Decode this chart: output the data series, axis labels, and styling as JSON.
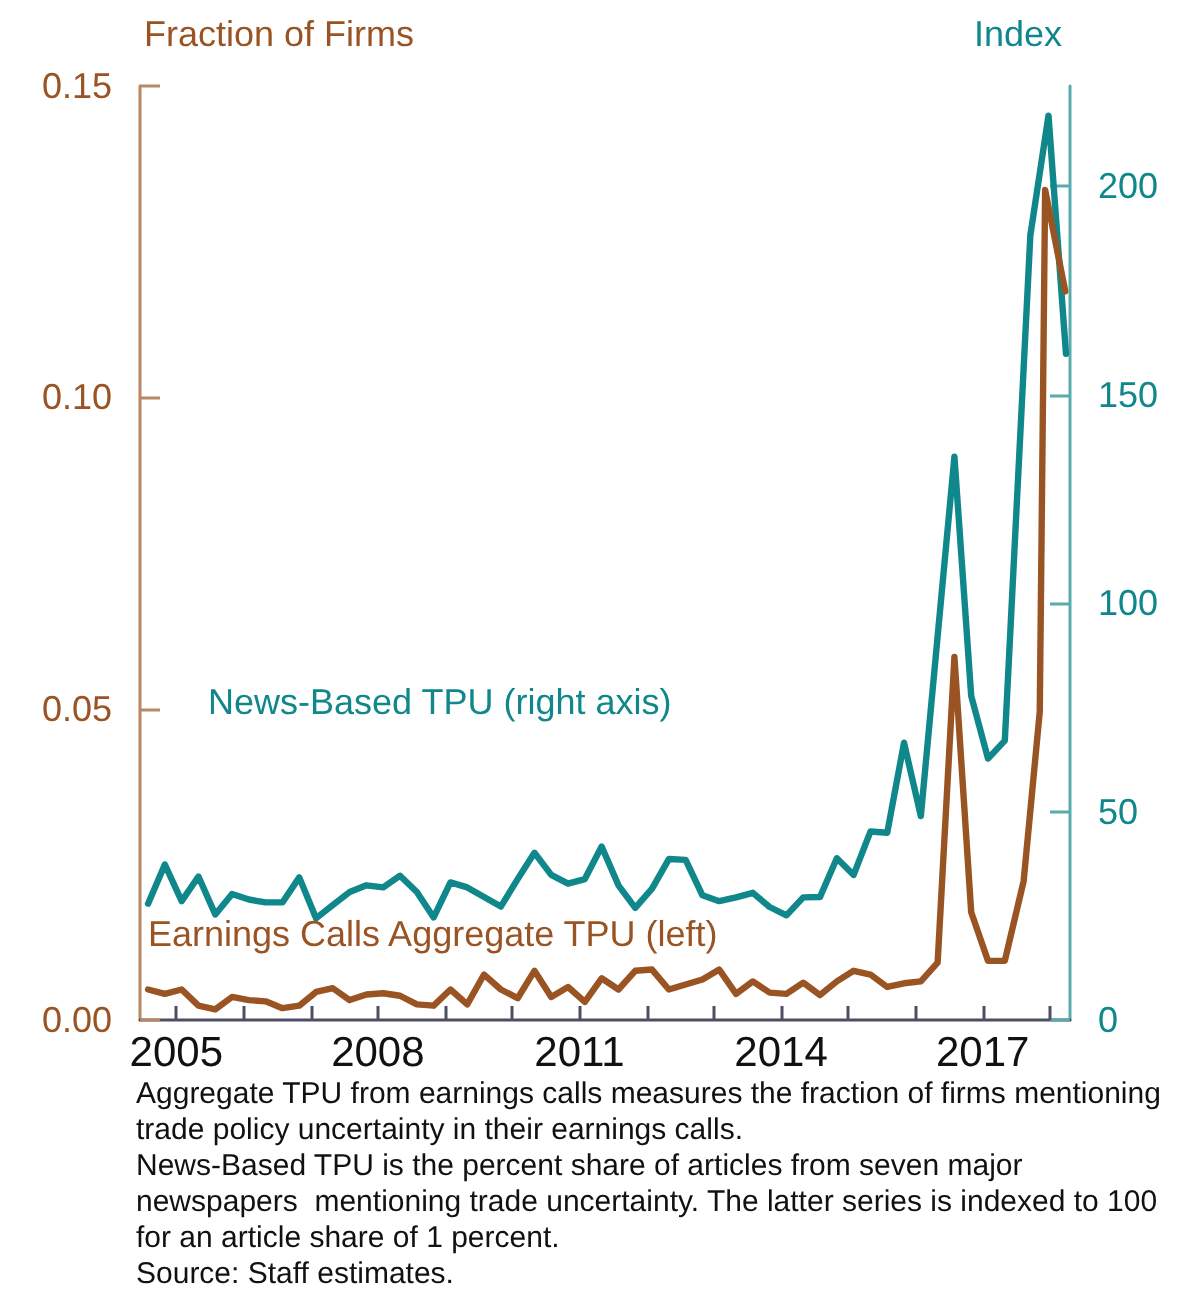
{
  "chart_data": {
    "type": "line",
    "ylabel": "Fraction of Firms",
    "y2label": "Index",
    "annotations": [
      "Aggregate TPU from earnings calls measures the fraction of firms mentioning trade policy uncertainty in their earnings calls.",
      "News-Based TPU is the percent share of articles from seven major newspapers  mentioning trade uncertainty. The latter series is indexed to 100 for an article share of 1 percent.",
      "Source: Staff estimates."
    ],
    "xlim": [
      2004.46,
      2018.3
    ],
    "xticks": [
      2005,
      {
        "value": 2006,
        "label": null
      },
      {
        "value": 2007,
        "label": null
      },
      2008,
      {
        "value": 2009,
        "label": null
      },
      {
        "value": 2010,
        "label": null
      },
      2011,
      {
        "value": 2012,
        "label": null
      },
      {
        "value": 2013,
        "label": null
      },
      2014,
      {
        "value": 2015,
        "label": null
      },
      {
        "value": 2016,
        "label": null
      },
      2017,
      {
        "value": 2018,
        "label": null
      }
    ],
    "ylim": [
      0,
      0.15
    ],
    "yticks": [
      {
        "value": 0,
        "label": "0.00"
      },
      0.05,
      {
        "value": 0.1,
        "label": "0.10"
      },
      0.15
    ],
    "y2lim": [
      0,
      224
    ],
    "y2ticks": [
      0,
      50,
      100,
      150,
      200
    ],
    "grid": false,
    "legend": false,
    "marker": "none",
    "line_style": "solid",
    "series": [
      {
        "name": "News-Based TPU (right axis)",
        "color": "#10878a",
        "axis": "y2",
        "x": [
          2004.58,
          2004.83,
          2005.08,
          2005.33,
          2005.58,
          2005.83,
          2006.08,
          2006.33,
          2006.58,
          2006.83,
          2007.08,
          2007.33,
          2007.58,
          2007.83,
          2008.08,
          2008.33,
          2008.58,
          2008.83,
          2009.08,
          2009.33,
          2009.58,
          2009.83,
          2010.08,
          2010.33,
          2010.58,
          2010.83,
          2011.08,
          2011.33,
          2011.58,
          2011.83,
          2012.08,
          2012.33,
          2012.58,
          2012.83,
          2013.08,
          2013.33,
          2013.58,
          2013.83,
          2014.08,
          2014.33,
          2014.58,
          2014.83,
          2015.08,
          2015.33,
          2015.58,
          2015.83,
          2016.08,
          2016.58,
          2016.83,
          2017.08,
          2017.33,
          2017.71,
          2017.98,
          2018.24
        ],
        "values": [
          27.9,
          37.3,
          28.5,
          34.4,
          25.3,
          30.2,
          28.9,
          28.2,
          28.2,
          34.2,
          24.4,
          27.6,
          30.7,
          32.3,
          31.8,
          34.6,
          30.7,
          24.6,
          33.0,
          31.8,
          29.5,
          27.2,
          33.8,
          40.1,
          34.8,
          32.7,
          33.8,
          41.6,
          32.3,
          26.9,
          31.5,
          38.6,
          38.4,
          29.9,
          28.5,
          29.4,
          30.5,
          27.1,
          25.1,
          29.4,
          29.5,
          38.8,
          34.8,
          45.2,
          44.9,
          66.5,
          48.9,
          135.1,
          77.7,
          62.7,
          67.0,
          188.2,
          216.9,
          159.8
        ]
      },
      {
        "name": "Earnings Calls Aggregate TPU (left)",
        "color": "#9a5424",
        "x": [
          2004.58,
          2004.83,
          2005.08,
          2005.33,
          2005.58,
          2005.83,
          2006.08,
          2006.33,
          2006.58,
          2006.83,
          2007.08,
          2007.33,
          2007.58,
          2007.83,
          2008.08,
          2008.33,
          2008.58,
          2008.83,
          2009.08,
          2009.33,
          2009.58,
          2009.83,
          2010.08,
          2010.33,
          2010.58,
          2010.83,
          2011.08,
          2011.33,
          2011.58,
          2011.83,
          2012.08,
          2012.33,
          2012.58,
          2012.83,
          2013.08,
          2013.33,
          2013.58,
          2013.83,
          2014.08,
          2014.33,
          2014.58,
          2014.83,
          2015.08,
          2015.33,
          2015.58,
          2015.83,
          2016.08,
          2016.33,
          2016.58,
          2016.83,
          2017.08,
          2017.33,
          2017.61,
          2017.85,
          2017.93,
          2018.23
        ],
        "values": [
          0.0049,
          0.0042,
          0.0049,
          0.0023,
          0.0017,
          0.0037,
          0.0032,
          0.003,
          0.0019,
          0.0023,
          0.0045,
          0.0051,
          0.0032,
          0.0041,
          0.0043,
          0.0039,
          0.0025,
          0.0023,
          0.0049,
          0.0025,
          0.0073,
          0.0049,
          0.0035,
          0.0079,
          0.0037,
          0.0053,
          0.0029,
          0.0067,
          0.0049,
          0.0079,
          0.0081,
          0.0049,
          0.0057,
          0.0065,
          0.0081,
          0.0042,
          0.0062,
          0.0044,
          0.0042,
          0.006,
          0.004,
          0.0062,
          0.0079,
          0.0073,
          0.0053,
          0.0059,
          0.0062,
          0.0092,
          0.0583,
          0.0173,
          0.0095,
          0.0095,
          0.0223,
          0.0495,
          0.1333,
          0.117
        ]
      }
    ]
  }
}
